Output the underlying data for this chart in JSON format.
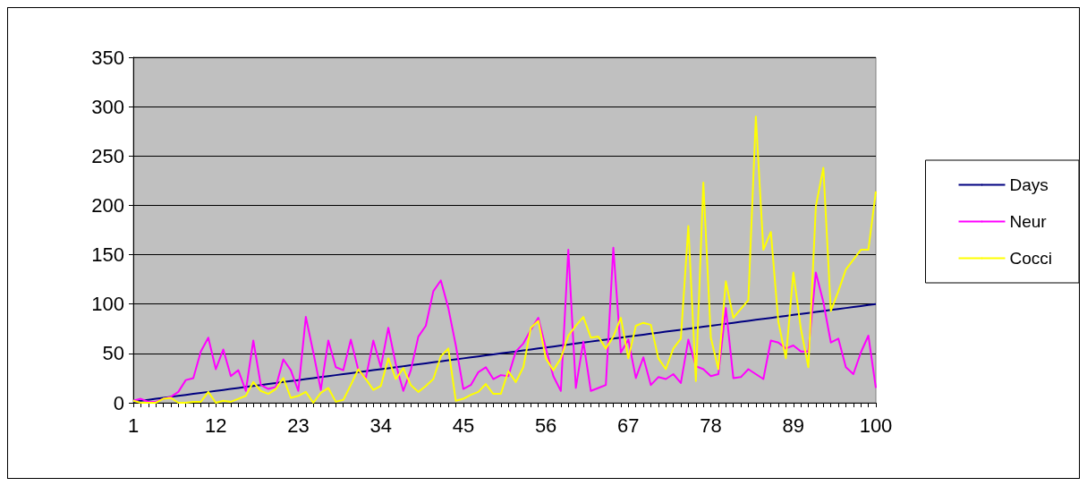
{
  "chart_data": {
    "type": "line",
    "categories": [
      "1",
      null,
      null,
      null,
      null,
      null,
      null,
      null,
      null,
      null,
      null,
      "12",
      null,
      null,
      null,
      null,
      null,
      null,
      null,
      null,
      null,
      null,
      "23",
      null,
      null,
      null,
      null,
      null,
      null,
      null,
      null,
      null,
      null,
      "34",
      null,
      null,
      null,
      null,
      null,
      null,
      null,
      null,
      null,
      null,
      "45",
      null,
      null,
      null,
      null,
      null,
      null,
      null,
      null,
      null,
      null,
      "56",
      null,
      null,
      null,
      null,
      null,
      null,
      null,
      null,
      null,
      null,
      "67",
      null,
      null,
      null,
      null,
      null,
      null,
      null,
      null,
      null,
      null,
      "78",
      null,
      null,
      null,
      null,
      null,
      null,
      null,
      null,
      null,
      null,
      "89",
      null,
      null,
      null,
      null,
      null,
      null,
      null,
      null,
      null,
      null,
      "100"
    ],
    "series": [
      {
        "name": "Days",
        "color": "#000080",
        "values": [
          1,
          2,
          3,
          4,
          5,
          6,
          7,
          8,
          9,
          10,
          11,
          12,
          13,
          14,
          15,
          16,
          17,
          18,
          19,
          20,
          21,
          22,
          23,
          24,
          25,
          26,
          27,
          28,
          29,
          30,
          31,
          32,
          33,
          34,
          35,
          36,
          37,
          38,
          39,
          40,
          41,
          42,
          43,
          44,
          45,
          46,
          47,
          48,
          49,
          50,
          51,
          52,
          53,
          54,
          55,
          56,
          57,
          58,
          59,
          60,
          61,
          62,
          63,
          64,
          65,
          66,
          67,
          68,
          69,
          70,
          71,
          72,
          73,
          74,
          75,
          76,
          77,
          78,
          79,
          80,
          81,
          82,
          83,
          84,
          85,
          86,
          87,
          88,
          89,
          90,
          91,
          92,
          93,
          94,
          95,
          96,
          97,
          98,
          99,
          100
        ]
      },
      {
        "name": "Neur",
        "color": "#ff00ff",
        "values": [
          2,
          4,
          1,
          1,
          4,
          6,
          11,
          23,
          25,
          52,
          66,
          34,
          54,
          27,
          33,
          12,
          63,
          18,
          14,
          16,
          44,
          33,
          12,
          87,
          51,
          13,
          63,
          36,
          33,
          64,
          33,
          25,
          63,
          36,
          76,
          39,
          12,
          33,
          67,
          78,
          113,
          124,
          96,
          58,
          14,
          18,
          31,
          36,
          24,
          28,
          27,
          52,
          60,
          74,
          86,
          55,
          27,
          12,
          155,
          15,
          62,
          12,
          15,
          18,
          157,
          51,
          64,
          25,
          46,
          18,
          26,
          24,
          29,
          20,
          64,
          37,
          34,
          27,
          29,
          96,
          25,
          26,
          34,
          29,
          24,
          63,
          61,
          55,
          58,
          52,
          52,
          132,
          102,
          61,
          65,
          36,
          29,
          51,
          68,
          15
        ]
      },
      {
        "name": "Cocci",
        "color": "#ffff00",
        "values": [
          2,
          0,
          0,
          0,
          4,
          5,
          0,
          0,
          1,
          1,
          11,
          0,
          2,
          1,
          4,
          7,
          21,
          12,
          9,
          14,
          25,
          5,
          7,
          11,
          0,
          10,
          15,
          1,
          3,
          18,
          34,
          24,
          13,
          17,
          45,
          24,
          35,
          18,
          11,
          17,
          24,
          47,
          55,
          2,
          4,
          8,
          11,
          19,
          9,
          9,
          32,
          21,
          36,
          76,
          83,
          45,
          33,
          45,
          68,
          78,
          87,
          66,
          67,
          55,
          67,
          86,
          45,
          78,
          81,
          79,
          45,
          34,
          55,
          65,
          179,
          22,
          223,
          66,
          34,
          123,
          86,
          95,
          104,
          290,
          155,
          173,
          82,
          45,
          132,
          75,
          36,
          199,
          238,
          93,
          113,
          135,
          145,
          155,
          155,
          214
        ]
      }
    ],
    "ylim": [
      0,
      350
    ],
    "yticks": [
      0,
      50,
      100,
      150,
      200,
      250,
      300,
      350
    ],
    "grid": "y",
    "legend": "right",
    "marker": "none",
    "line_style": "solid"
  }
}
